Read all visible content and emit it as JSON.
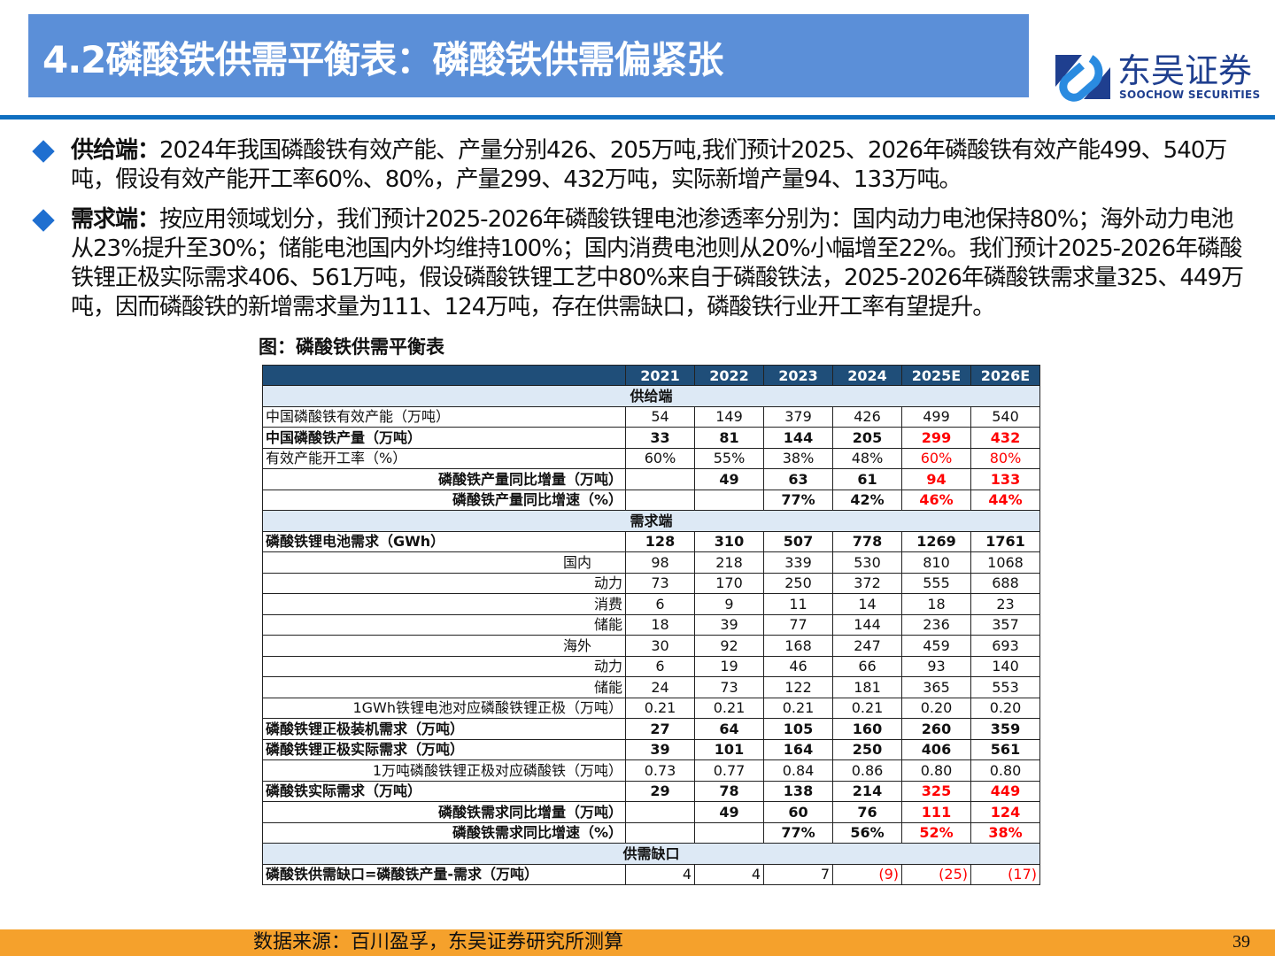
{
  "title": "4.2磷酸铁供需平衡表：磷酸铁供需偏紧张",
  "logo": {
    "cn": "东吴证券",
    "en": "SOOCHOW SECURITIES"
  },
  "bullets": [
    {
      "head": "供给端：",
      "text": "2024年我国磷酸铁有效产能、产量分别426、205万吨,我们预计2025、2026年磷酸铁有效产能499、540万吨，假设有效产能开工率60%、80%，产量299、432万吨，实际新增产量94、133万吨。"
    },
    {
      "head": "需求端：",
      "text": "按应用领域划分，我们预计2025-2026年磷酸铁锂电池渗透率分别为：国内动力电池保持80%；海外动力电池从23%提升至30%；储能电池国内外均维持100%；国内消费电池则从20%小幅增至22%。我们预计2025-2026年磷酸铁锂正极实际需求406、561万吨，假设磷酸铁锂工艺中80%来自于磷酸铁法，2025-2026年磷酸铁需求量325、449万吨，因而磷酸铁的新增需求量为111、124万吨，存在供需缺口，磷酸铁行业开工率有望提升。"
    }
  ],
  "figure_title": "图：磷酸铁供需平衡表",
  "table": {
    "columns": [
      "",
      "2021",
      "2022",
      "2023",
      "2024",
      "2025E",
      "2026E"
    ],
    "rows": [
      {
        "section": "供给端"
      },
      {
        "label": "中国磷酸铁有效产能（万吨）",
        "align": "left",
        "values": [
          "54",
          "149",
          "379",
          "426",
          "499",
          "540"
        ]
      },
      {
        "label": "中国磷酸铁产量（万吨）",
        "align": "left",
        "bold": true,
        "red": true,
        "values": [
          "33",
          "81",
          "144",
          "205",
          "299",
          "432"
        ]
      },
      {
        "label": "有效产能开工率（%）",
        "align": "left",
        "red": true,
        "values": [
          "60%",
          "55%",
          "38%",
          "48%",
          "60%",
          "80%"
        ]
      },
      {
        "label": "磷酸铁产量同比增量（万吨）",
        "align": "right",
        "bold": true,
        "red": true,
        "values": [
          "",
          "49",
          "63",
          "61",
          "94",
          "133"
        ]
      },
      {
        "label": "磷酸铁产量同比增速（%）",
        "align": "right",
        "bold": true,
        "red": true,
        "values": [
          "",
          "",
          "77%",
          "42%",
          "46%",
          "44%"
        ]
      },
      {
        "section": "需求端"
      },
      {
        "label": "磷酸铁锂电池需求（GWh）",
        "align": "left",
        "bold": true,
        "values": [
          "128",
          "310",
          "507",
          "778",
          "1269",
          "1761"
        ]
      },
      {
        "label": "国内",
        "align": "indent1",
        "values": [
          "98",
          "218",
          "339",
          "530",
          "810",
          "1068"
        ]
      },
      {
        "label": "动力",
        "align": "right",
        "values": [
          "73",
          "170",
          "250",
          "372",
          "555",
          "688"
        ]
      },
      {
        "label": "消费",
        "align": "right",
        "values": [
          "6",
          "9",
          "11",
          "14",
          "18",
          "23"
        ]
      },
      {
        "label": "储能",
        "align": "right",
        "values": [
          "18",
          "39",
          "77",
          "144",
          "236",
          "357"
        ]
      },
      {
        "label": "海外",
        "align": "indent1",
        "values": [
          "30",
          "92",
          "168",
          "247",
          "459",
          "693"
        ]
      },
      {
        "label": "动力",
        "align": "right",
        "values": [
          "6",
          "19",
          "46",
          "66",
          "93",
          "140"
        ]
      },
      {
        "label": "储能",
        "align": "right",
        "values": [
          "24",
          "73",
          "122",
          "181",
          "365",
          "553"
        ]
      },
      {
        "label": "1GWh铁锂电池对应磷酸铁锂正极（万吨）",
        "align": "right",
        "values": [
          "0.21",
          "0.21",
          "0.21",
          "0.21",
          "0.20",
          "0.20"
        ]
      },
      {
        "label": "磷酸铁锂正极装机需求（万吨）",
        "align": "left",
        "bold": true,
        "values": [
          "27",
          "64",
          "105",
          "160",
          "260",
          "359"
        ]
      },
      {
        "label": "磷酸铁锂正极实际需求（万吨）",
        "align": "left",
        "bold": true,
        "values": [
          "39",
          "101",
          "164",
          "250",
          "406",
          "561"
        ]
      },
      {
        "label": "1万吨磷酸铁锂正极对应磷酸铁（万吨）",
        "align": "right",
        "values": [
          "0.73",
          "0.77",
          "0.84",
          "0.86",
          "0.80",
          "0.80"
        ]
      },
      {
        "label": "磷酸铁实际需求（万吨）",
        "align": "left",
        "bold": true,
        "red": true,
        "values": [
          "29",
          "78",
          "138",
          "214",
          "325",
          "449"
        ]
      },
      {
        "label": "磷酸铁需求同比增量（万吨）",
        "align": "right",
        "bold": true,
        "red": true,
        "values": [
          "",
          "49",
          "60",
          "76",
          "111",
          "124"
        ]
      },
      {
        "label": "磷酸铁需求同比增速（%）",
        "align": "right",
        "bold": true,
        "red": true,
        "values": [
          "",
          "",
          "77%",
          "56%",
          "52%",
          "38%"
        ]
      },
      {
        "section": "供需缺口"
      },
      {
        "label": "磷酸铁供需缺口=磷酸铁产量-需求（万吨）",
        "align": "left",
        "boldLabel": true,
        "gap": true,
        "values": [
          "4",
          "4",
          "7",
          "(9)",
          "(25)",
          "(17)"
        ]
      }
    ]
  },
  "source": "数据来源：百川盈孚，东吴证券研究所测算",
  "page_number": "39",
  "colors": {
    "title_bar": "#5b8fd8",
    "header": "#1f4e79",
    "section": "#dde9f5",
    "highlight": "#ff0000",
    "footer": "#f5a12c"
  }
}
